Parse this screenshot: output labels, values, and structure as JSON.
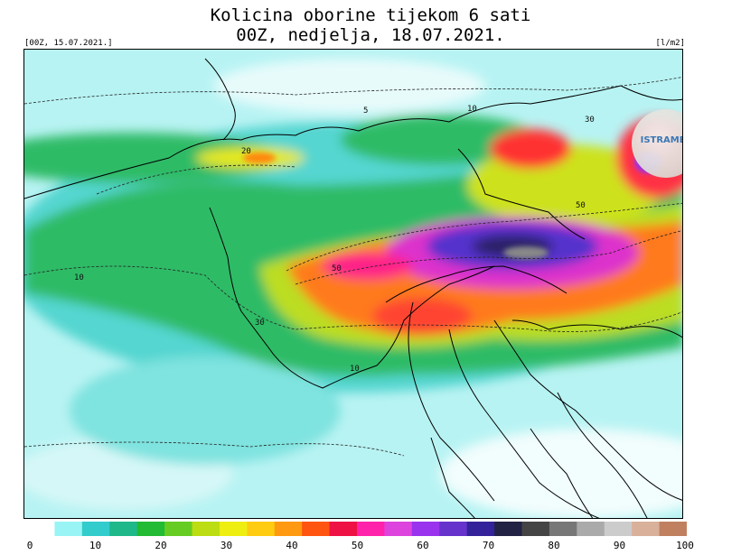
{
  "title": {
    "line1": "Kolicina oborine tijekom 6 sati",
    "line2": "00Z, nedjelja, 18.07.2021."
  },
  "init_label": "[00Z, 15.07.2021.]",
  "unit_label": "[l/m2]",
  "logo_text": "ISTRAMET",
  "colorbar": {
    "ticks": [
      "0",
      "10",
      "20",
      "30",
      "40",
      "50",
      "60",
      "70",
      "80",
      "90",
      "100"
    ],
    "colors": [
      "#ffffff",
      "#99f5f5",
      "#33cccc",
      "#1fb889",
      "#22bb33",
      "#66cc22",
      "#bbdd11",
      "#eeee11",
      "#ffcc11",
      "#ff9911",
      "#ff5511",
      "#ee1144",
      "#ff22aa",
      "#dd44dd",
      "#9933ee",
      "#6633cc",
      "#332299",
      "#222244",
      "#444444",
      "#777777",
      "#aaaaaa",
      "#cccccc",
      "#d9b09a",
      "#c08060"
    ]
  },
  "contour_labels": [
    "5",
    "10",
    "20",
    "30",
    "50"
  ]
}
